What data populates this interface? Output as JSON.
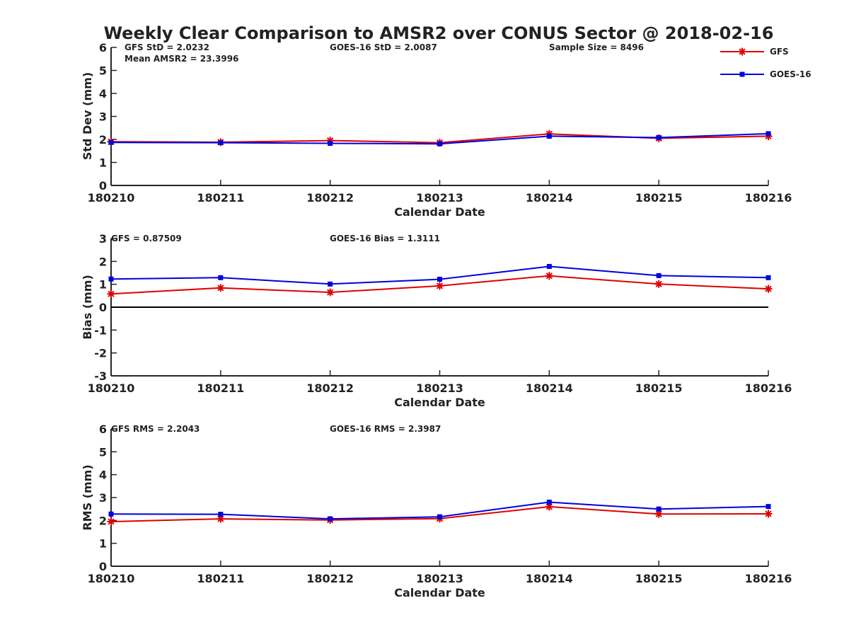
{
  "figure_title": "Weekly Clear Comparison to AMSR2 over CONUS Sector @ 2018-02-16",
  "colors": {
    "GFS": "#e00000",
    "GOES-16": "#0000e0",
    "axis": "#262626",
    "zero_line": "#000000"
  },
  "legend": {
    "placement": "top-right",
    "entries": [
      {
        "label": "GFS",
        "marker": "asterisk",
        "color": "#e00000"
      },
      {
        "label": "GOES-16",
        "marker": "square",
        "color": "#0000e0"
      }
    ]
  },
  "chart_data": [
    {
      "type": "line",
      "title": "",
      "xlabel": "Calendar Date",
      "ylabel": "Std Dev (mm)",
      "ylim": [
        0,
        6
      ],
      "yticks": [
        0,
        1,
        2,
        3,
        4,
        5,
        6
      ],
      "grid": false,
      "categories": [
        "180210",
        "180211",
        "180212",
        "180213",
        "180214",
        "180215",
        "180216"
      ],
      "series": [
        {
          "name": "GFS",
          "values": [
            1.9,
            1.88,
            1.95,
            1.86,
            2.24,
            2.05,
            2.14
          ]
        },
        {
          "name": "GOES-16",
          "values": [
            1.87,
            1.86,
            1.83,
            1.81,
            2.14,
            2.08,
            2.25
          ]
        }
      ],
      "annotations": [
        "GFS StD = 2.0232",
        "Mean AMSR2 = 23.3996",
        "GOES-16 StD = 2.0087",
        "Sample Size = 8496"
      ]
    },
    {
      "type": "line",
      "title": "",
      "xlabel": "Calendar Date",
      "ylabel": "Bias (mm)",
      "ylim": [
        -3,
        3
      ],
      "yticks": [
        -3,
        -2,
        -1,
        0,
        1,
        2,
        3
      ],
      "grid": false,
      "zero_line": true,
      "categories": [
        "180210",
        "180211",
        "180212",
        "180213",
        "180214",
        "180215",
        "180216"
      ],
      "series": [
        {
          "name": "GFS",
          "values": [
            0.58,
            0.84,
            0.65,
            0.93,
            1.37,
            1.01,
            0.8
          ]
        },
        {
          "name": "GOES-16",
          "values": [
            1.23,
            1.29,
            1.01,
            1.22,
            1.78,
            1.38,
            1.29
          ]
        }
      ],
      "annotations": [
        "GFS = 0.87509",
        "GOES-16 Bias  = 1.3111"
      ]
    },
    {
      "type": "line",
      "title": "",
      "xlabel": "Calendar Date",
      "ylabel": "RMS (mm)",
      "ylim": [
        0,
        6
      ],
      "yticks": [
        0,
        1,
        2,
        3,
        4,
        5,
        6
      ],
      "grid": false,
      "categories": [
        "180210",
        "180211",
        "180212",
        "180213",
        "180214",
        "180215",
        "180216"
      ],
      "series": [
        {
          "name": "GFS",
          "values": [
            1.95,
            2.07,
            2.02,
            2.08,
            2.6,
            2.28,
            2.29
          ]
        },
        {
          "name": "GOES-16",
          "values": [
            2.28,
            2.27,
            2.07,
            2.16,
            2.8,
            2.5,
            2.61
          ]
        }
      ],
      "annotations": [
        "GFS RMS = 2.2043",
        "GOES-16 RMS = 2.3987"
      ]
    }
  ]
}
